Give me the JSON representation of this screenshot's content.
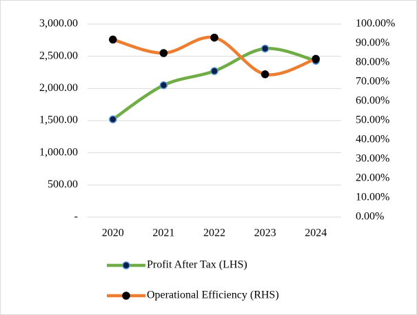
{
  "chart_data": {
    "type": "line",
    "categories": [
      "2020",
      "2021",
      "2022",
      "2023",
      "2024"
    ],
    "series": [
      {
        "name": "Profit After Tax (LHS)",
        "color": "#70ad47",
        "marker_color": "#0b1f4b",
        "marker_edge": "#5b9bd5",
        "values": [
          1520,
          2050,
          2270,
          2620,
          2430
        ]
      },
      {
        "name": "Operational Efficiency (RHS)",
        "color": "#ed7d31",
        "marker_color": "#000000",
        "marker_edge": "#000000",
        "axis": "y2",
        "values": [
          92,
          85,
          93,
          74,
          82
        ]
      }
    ],
    "ylim": [
      0,
      3000
    ],
    "yticks": [
      {
        "value": 0,
        "label": "-"
      },
      {
        "value": 500,
        "label": "500.00"
      },
      {
        "value": 1000,
        "label": "1,000.00"
      },
      {
        "value": 1500,
        "label": "1,500.00"
      },
      {
        "value": 2000,
        "label": "2,000.00"
      },
      {
        "value": 2500,
        "label": "2,500.00"
      },
      {
        "value": 3000,
        "label": "3,000.00"
      }
    ],
    "y2lim": [
      0,
      100
    ],
    "y2ticks": [
      {
        "value": 0,
        "label": "0.00%"
      },
      {
        "value": 10,
        "label": "10.00%"
      },
      {
        "value": 20,
        "label": "20.00%"
      },
      {
        "value": 30,
        "label": "30.00%"
      },
      {
        "value": 40,
        "label": "40.00%"
      },
      {
        "value": 50,
        "label": "50.00%"
      },
      {
        "value": 60,
        "label": "60.00%"
      },
      {
        "value": 70,
        "label": "70.00%"
      },
      {
        "value": 80,
        "label": "80.00%"
      },
      {
        "value": 90,
        "label": "90.00%"
      },
      {
        "value": 100,
        "label": "100.00%"
      }
    ],
    "grid": true,
    "smooth": true,
    "legend": "bottom"
  }
}
